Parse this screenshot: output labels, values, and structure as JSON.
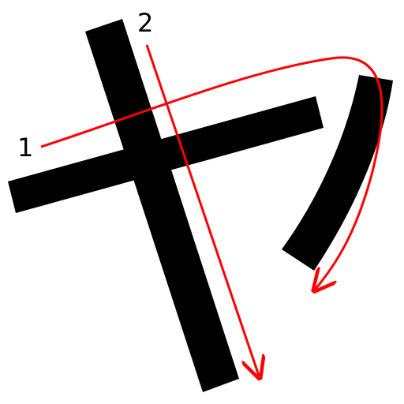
{
  "diagram": {
    "stroke_color": "#000000",
    "arrow_color": "#ff0000",
    "background_color": "#ffffff",
    "stroke_order_labels": [
      "1",
      "2"
    ]
  }
}
